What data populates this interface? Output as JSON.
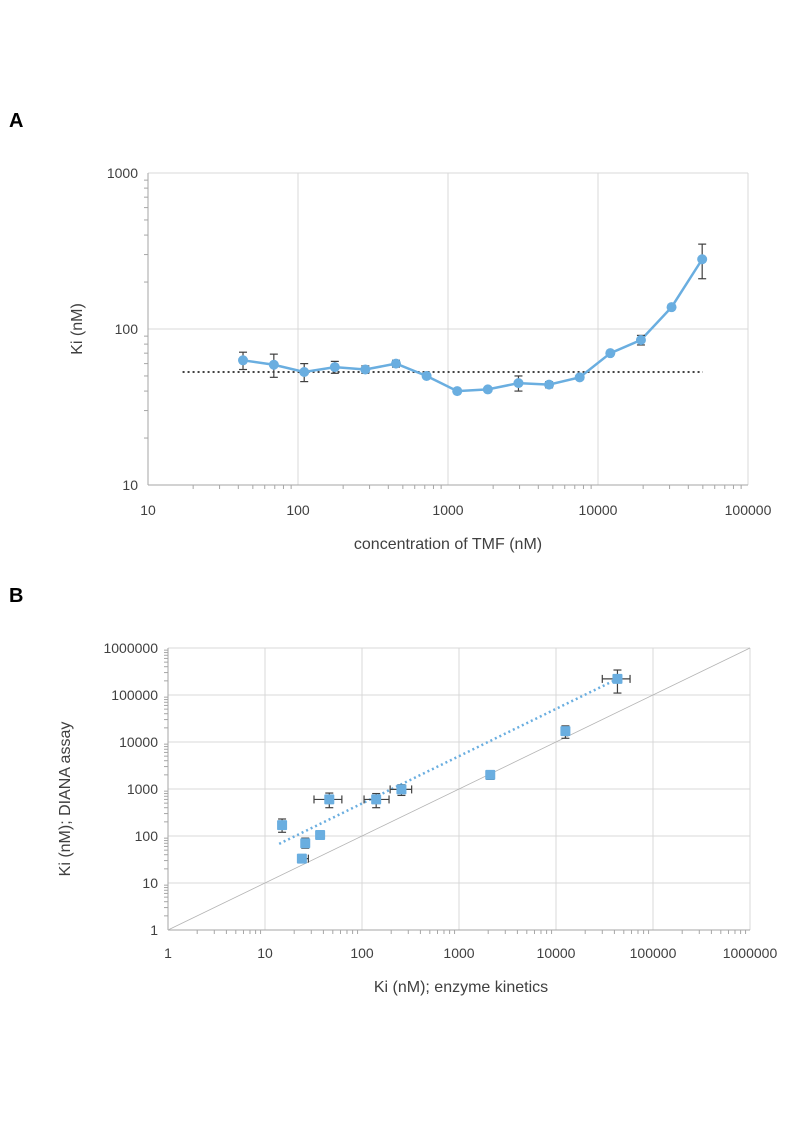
{
  "panels": [
    {
      "label": "A"
    },
    {
      "label": "B"
    }
  ],
  "chart_data": [
    {
      "type": "line",
      "xlabel": "concentration of TMF (nM)",
      "ylabel": "Ki (nM)",
      "xscale": "log",
      "yscale": "log",
      "xlim": [
        10,
        100000
      ],
      "ylim": [
        10,
        1000
      ],
      "xticks": [
        "10",
        "100",
        "1000",
        "10000",
        "100000"
      ],
      "yticks": [
        "10",
        "100",
        "1000"
      ],
      "grid": true,
      "colors": {
        "series": "#6aaee0",
        "reference": "#404040",
        "errorbar": "#404040",
        "grid": "#d9d9d9"
      },
      "series": [
        {
          "x": [
            43,
            69,
            110,
            176,
            281,
            450,
            720,
            1152,
            1843,
            2949,
            4719,
            7550,
            12080,
            19330,
            30930,
            49490
          ],
          "y": [
            63,
            59,
            53,
            57,
            55,
            60,
            50,
            40,
            41,
            45,
            44,
            49,
            70,
            85,
            138,
            280
          ],
          "err": [
            8,
            10,
            7,
            5,
            3,
            3,
            0,
            0,
            0,
            5,
            2,
            0,
            0,
            6,
            0,
            70
          ]
        }
      ],
      "reference_line": {
        "y": 53,
        "x": [
          17,
          50000
        ],
        "style": "dotted"
      }
    },
    {
      "type": "scatter",
      "xlabel": "Ki (nM); enzyme kinetics",
      "ylabel": "Ki (nM); DIANA assay",
      "xscale": "log",
      "yscale": "log",
      "xlim": [
        1,
        1000000
      ],
      "ylim": [
        1,
        1000000
      ],
      "xticks": [
        "1",
        "10",
        "100",
        "1000",
        "10000",
        "100000",
        "1000000"
      ],
      "yticks": [
        "1",
        "10",
        "100",
        "1000",
        "10000",
        "100000",
        "1000000"
      ],
      "grid": true,
      "colors": {
        "points": "#6aaee0",
        "trendline": "#6aaee0",
        "identity": "#b3b3b3",
        "errorbar": "#404040",
        "grid": "#d9d9d9"
      },
      "points": [
        {
          "x": 15,
          "y": 170,
          "xerr": [
            1,
            1
          ],
          "yerr": [
            50,
            60
          ]
        },
        {
          "x": 24,
          "y": 33,
          "xerr": [
            2,
            4
          ],
          "yerr": [
            5,
            5
          ]
        },
        {
          "x": 26,
          "y": 70,
          "xerr": [
            1,
            1
          ],
          "yerr": [
            15,
            20
          ]
        },
        {
          "x": 37,
          "y": 105,
          "xerr": [
            0,
            0
          ],
          "yerr": [
            0,
            0
          ]
        },
        {
          "x": 46,
          "y": 600,
          "xerr": [
            14,
            16
          ],
          "yerr": [
            200,
            220
          ]
        },
        {
          "x": 140,
          "y": 600,
          "xerr": [
            35,
            50
          ],
          "yerr": [
            200,
            200
          ]
        },
        {
          "x": 255,
          "y": 980,
          "xerr": [
            60,
            70
          ],
          "yerr": [
            250,
            250
          ]
        },
        {
          "x": 2100,
          "y": 2000,
          "xerr": [
            120,
            150
          ],
          "yerr": [
            400,
            400
          ]
        },
        {
          "x": 12500,
          "y": 17000,
          "xerr": [
            400,
            400
          ],
          "yerr": [
            5000,
            5000
          ]
        },
        {
          "x": 43000,
          "y": 220000,
          "xerr": [
            13000,
            15000
          ],
          "yerr": [
            110000,
            120000
          ]
        }
      ],
      "trendline": {
        "x": [
          14,
          43000
        ],
        "y": [
          68,
          220000
        ],
        "style": "dotted"
      },
      "identity_line": {
        "x": [
          1,
          1000000
        ],
        "y": [
          1,
          1000000
        ]
      }
    }
  ]
}
